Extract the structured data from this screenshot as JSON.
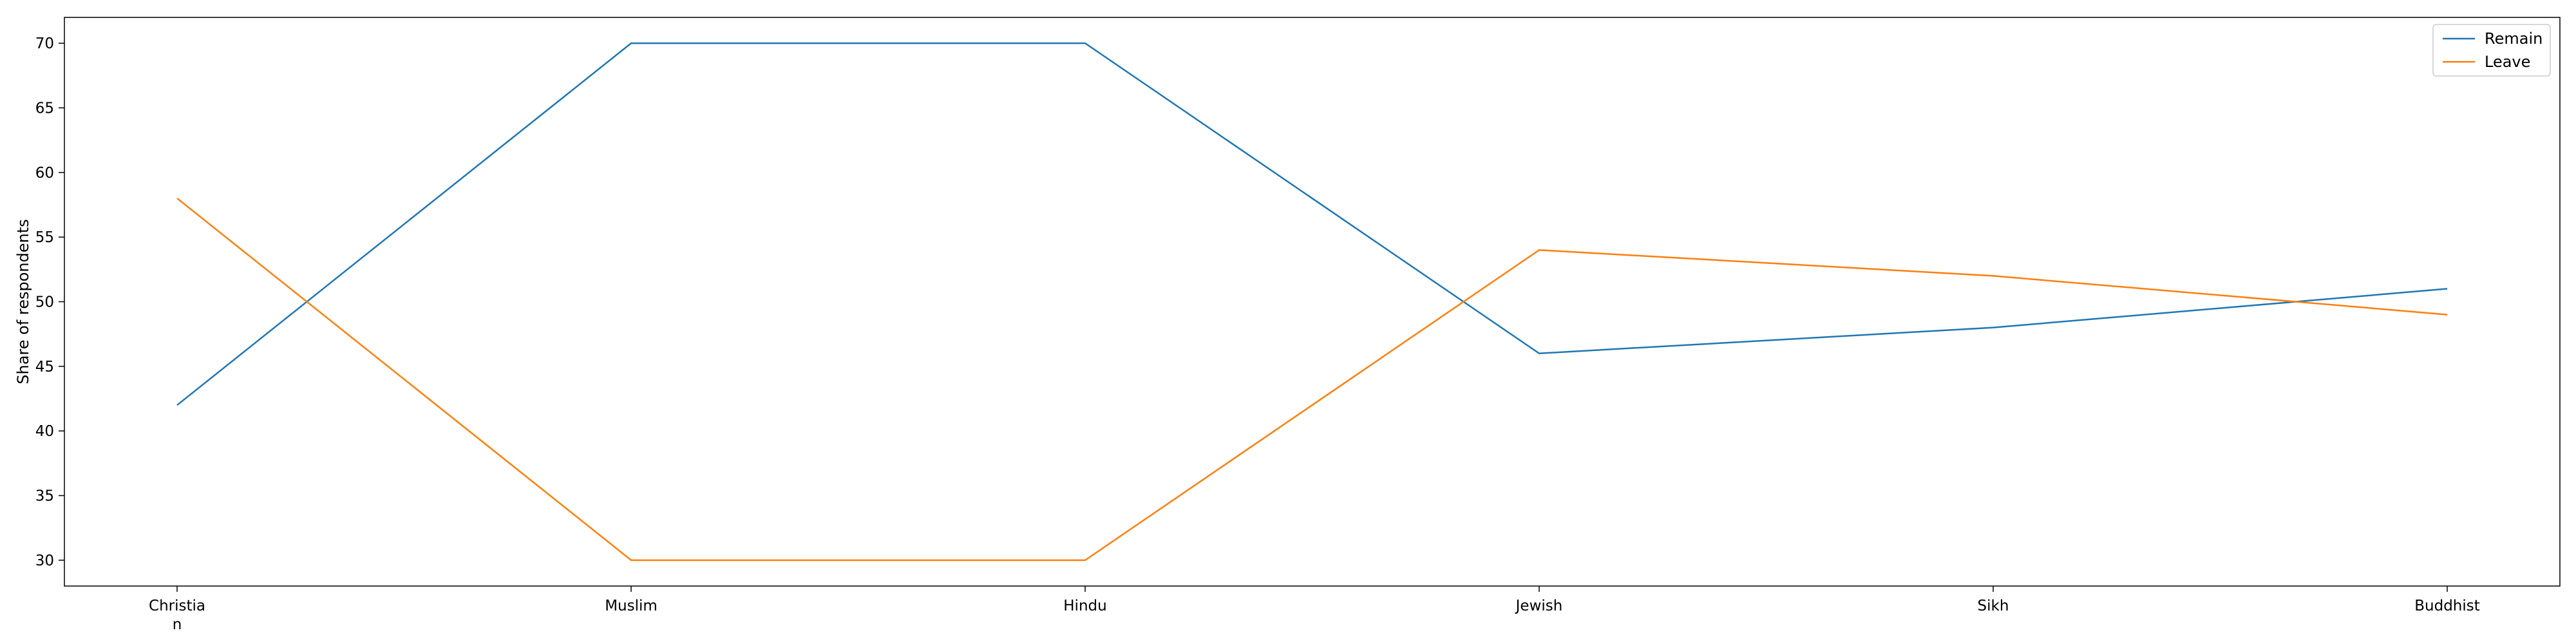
{
  "chart_data": {
    "type": "line",
    "categories": [
      "Christia\nn",
      "Muslim",
      "Hindu",
      "Jewish",
      "Sikh",
      "Buddhist"
    ],
    "series": [
      {
        "name": "Remain",
        "values": [
          42,
          70,
          70,
          46,
          48,
          51
        ],
        "color": "#1f77b4"
      },
      {
        "name": "Leave",
        "values": [
          58,
          30,
          30,
          54,
          52,
          49
        ],
        "color": "#ff7f0e"
      }
    ],
    "title": "",
    "xlabel": "",
    "ylabel": "Share of respondents",
    "ylim": [
      28,
      72
    ],
    "yticks": [
      30,
      35,
      40,
      45,
      50,
      55,
      60,
      65,
      70
    ],
    "grid": false,
    "legend_position": "top-right"
  }
}
